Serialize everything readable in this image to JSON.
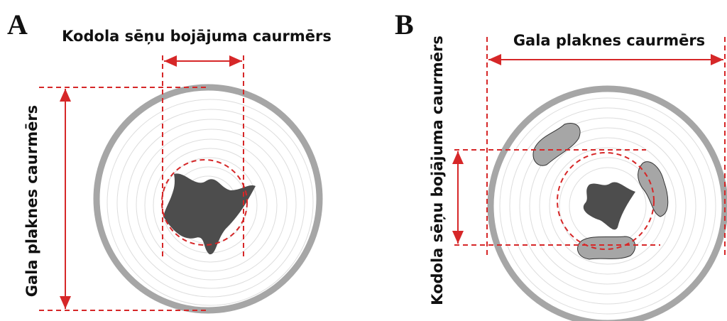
{
  "panels": [
    {
      "letter": "A",
      "top_label": "Kodola sēņu bojājuma caurmērs",
      "side_label": "Gala plaknes caurmērs"
    },
    {
      "letter": "B",
      "top_label": "Gala plaknes caurmērs",
      "side_label": "Kodola sēņu bojājuma caurmērs"
    }
  ]
}
